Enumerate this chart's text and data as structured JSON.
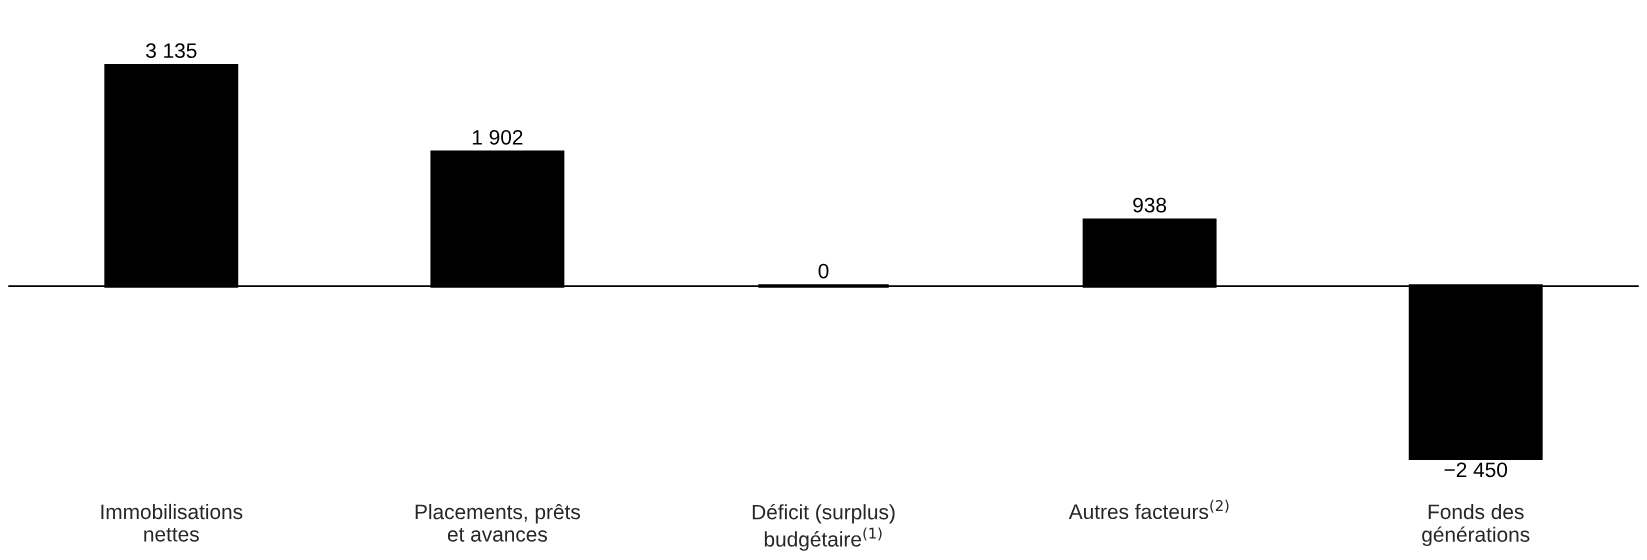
{
  "chart_data": {
    "type": "bar",
    "categories": [
      "Immobilisations\nnettes",
      "Placements, prêts\net avances",
      "Déficit (surplus)\nbudgétaire$^{(1)}$",
      "Autres facteurs$^{(2)}$",
      "Fonds des\ngénérations"
    ],
    "values": [
      3135,
      1902,
      0,
      938,
      -2450
    ],
    "value_labels": [
      "3 135",
      "1 902",
      "0",
      "938",
      "−2 450"
    ],
    "color": "#000000",
    "grid": false,
    "legend": false
  }
}
